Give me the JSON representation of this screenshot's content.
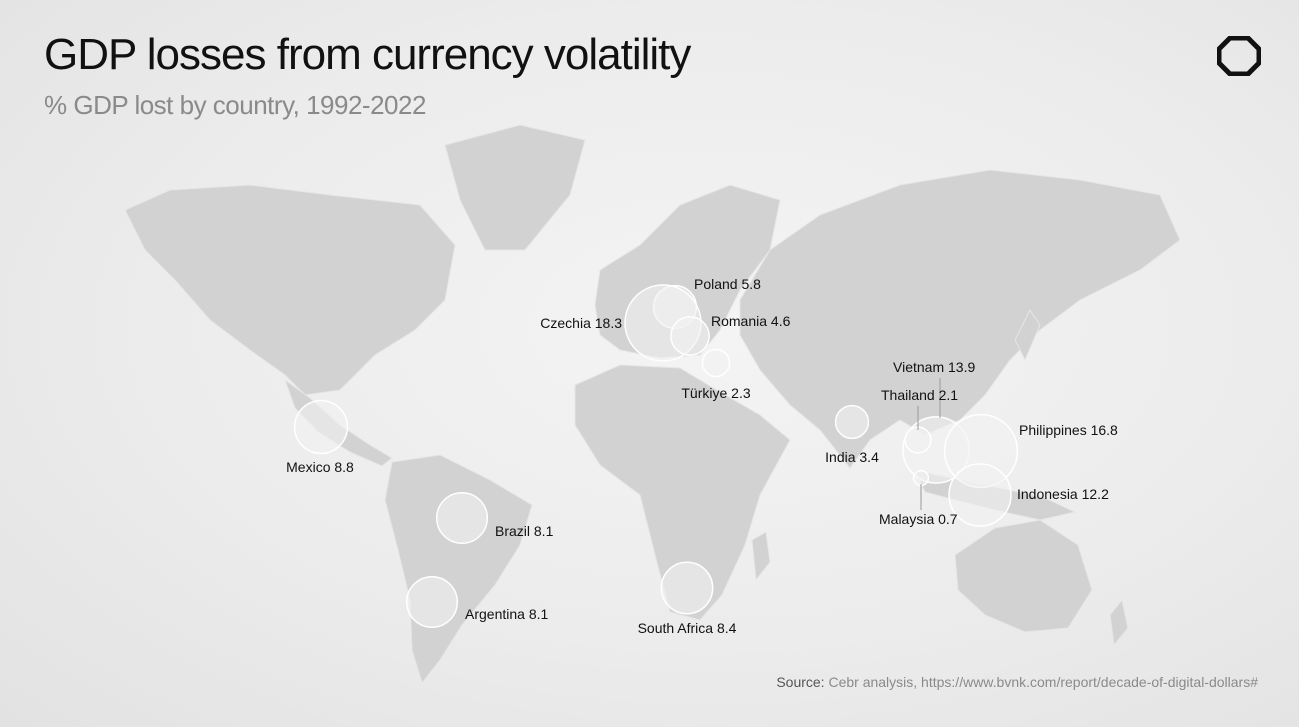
{
  "header": {
    "title": "GDP losses from currency volatility",
    "subtitle": "% GDP lost by country, 1992-2022"
  },
  "source": {
    "label": "Source:",
    "text": "Cebr analysis, https://www.bvnk.com/report/decade-of-digital-dollars#"
  },
  "colors": {
    "land": "#d2d2d2",
    "bubble_fill": "#f2f2f2",
    "bubble_stroke": "#ffffff",
    "text": "#111111",
    "muted": "#8a8a8a"
  },
  "logo_icon": "octagon-logo-icon",
  "map_data": {
    "metric": "% GDP lost",
    "countries": [
      {
        "name": "Poland",
        "value": 5.8
      },
      {
        "name": "Czechia",
        "value": 18.3
      },
      {
        "name": "Romania",
        "value": 4.6
      },
      {
        "name": "Türkiye",
        "value": 2.3
      },
      {
        "name": "Vietnam",
        "value": 13.9
      },
      {
        "name": "Thailand",
        "value": 2.1
      },
      {
        "name": "Philippines",
        "value": 16.8
      },
      {
        "name": "India",
        "value": 3.4
      },
      {
        "name": "Indonesia",
        "value": 12.2
      },
      {
        "name": "Malaysia",
        "value": 0.7
      },
      {
        "name": "Mexico",
        "value": 8.8
      },
      {
        "name": "Brazil",
        "value": 8.1
      },
      {
        "name": "Argentina",
        "value": 8.1
      },
      {
        "name": "South Africa",
        "value": 8.4
      }
    ]
  }
}
